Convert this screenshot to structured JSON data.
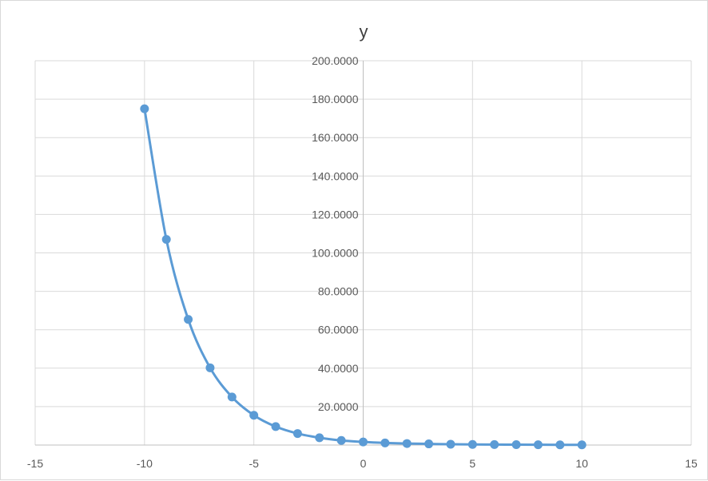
{
  "chart_data": {
    "type": "scatter",
    "title": "y",
    "xlabel": "",
    "ylabel": "",
    "xlim": [
      -15,
      15
    ],
    "ylim": [
      0,
      200
    ],
    "x_ticks": [
      -15,
      -10,
      -5,
      0,
      5,
      10,
      15
    ],
    "x_tick_labels": [
      "-15",
      "-10",
      "-5",
      "0",
      "5",
      "10",
      "15"
    ],
    "y_ticks": [
      20,
      40,
      60,
      80,
      100,
      120,
      140,
      160,
      180,
      200
    ],
    "y_tick_labels": [
      "20.0000",
      "40.0000",
      "60.0000",
      "80.0000",
      "100.0000",
      "120.0000",
      "140.0000",
      "160.0000",
      "180.0000",
      "200.0000"
    ],
    "grid": true,
    "legend": "none",
    "smooth_line": true,
    "marker": "circle",
    "color": "#5b9bd5",
    "series": [
      {
        "x": [
          -10,
          -9,
          -8,
          -7,
          -6,
          -5,
          -4,
          -3,
          -2,
          -1,
          0,
          1,
          2,
          3,
          4,
          5,
          6,
          7,
          8,
          9,
          10
        ],
        "values": [
          175,
          107,
          65.4,
          40.2,
          25,
          15.5,
          9.6,
          6,
          3.8,
          2.4,
          1.6,
          1.1,
          0.8,
          0.6,
          0.4,
          0.3,
          0.25,
          0.2,
          0.15,
          0.12,
          0.1
        ]
      }
    ]
  }
}
